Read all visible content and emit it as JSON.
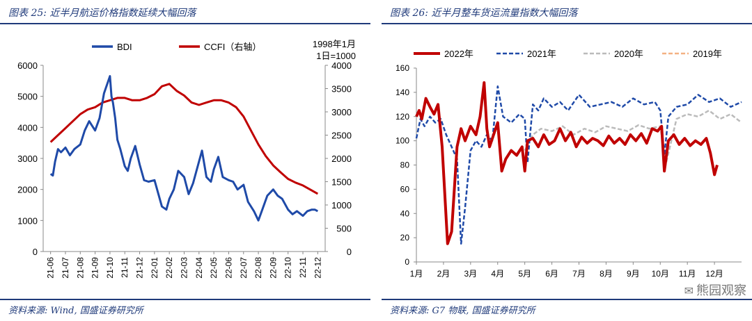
{
  "charts": [
    {
      "title": "图表 25:  近半月航运价格指数延续大幅回落",
      "source": "资料来源: Wind, 国盛证券研究所"
    },
    {
      "title": "图表 26:  近半月整车货运流量指数大幅回落",
      "source": "资料来源: G7 物联, 国盛证券研究所"
    }
  ],
  "watermark": "熊园观察",
  "colors": {
    "blue": "#1f4aa8",
    "red": "#c00000",
    "navy": "#1f3a7a",
    "gray": "#bbbbbb",
    "orange": "#f4b183"
  },
  "chart_data": [
    {
      "type": "line",
      "x_ticks": [
        "21-06",
        "21-07",
        "21-08",
        "21-09",
        "21-10",
        "21-11",
        "21-12",
        "22-01",
        "22-02",
        "22-03",
        "22-04",
        "22-05",
        "22-06",
        "22-07",
        "22-08",
        "22-09",
        "22-10",
        "22-11",
        "22-12"
      ],
      "ylim_left": [
        0,
        6000
      ],
      "yticks_left": [
        "0",
        "1000",
        "2000",
        "3000",
        "4000",
        "5000",
        "6000"
      ],
      "ylim_right": [
        0,
        4000
      ],
      "yticks_right": [
        "0",
        "500",
        "1000",
        "1500",
        "2000",
        "2500",
        "3000",
        "3500",
        "4000"
      ],
      "right_note_1": "1998年1月",
      "right_note_2": "1日=1000",
      "series": [
        {
          "name": "BDI",
          "axis": "left",
          "x": [
            0,
            0.15,
            0.3,
            0.5,
            0.7,
            1.0,
            1.3,
            1.6,
            2.0,
            2.3,
            2.6,
            3.0,
            3.3,
            3.6,
            4.0,
            4.1,
            4.2,
            4.35,
            4.5,
            4.7,
            5.0,
            5.2,
            5.4,
            5.7,
            6.0,
            6.3,
            6.6,
            7.0,
            7.5,
            7.8,
            8.0,
            8.3,
            8.6,
            9.0,
            9.3,
            9.6,
            10.0,
            10.2,
            10.5,
            10.8,
            11.0,
            11.3,
            11.6,
            12.0,
            12.3,
            12.6,
            13.0,
            13.3,
            13.7,
            14.0,
            14.3,
            14.6,
            15.0,
            15.3,
            15.6,
            16.0,
            16.3,
            16.6,
            17.0,
            17.3,
            17.6,
            17.8,
            18.0
          ],
          "y": [
            2500,
            2450,
            2900,
            3300,
            3200,
            3350,
            3100,
            3300,
            3450,
            3900,
            4200,
            3900,
            4300,
            5100,
            5650,
            5000,
            4800,
            4300,
            3600,
            3300,
            2750,
            2600,
            3000,
            3400,
            2800,
            2300,
            2250,
            2300,
            1450,
            1350,
            1700,
            2000,
            2600,
            2400,
            1850,
            2200,
            2900,
            3250,
            2400,
            2250,
            2650,
            3050,
            2400,
            2300,
            2250,
            2000,
            2150,
            1600,
            1300,
            1000,
            1400,
            1800,
            2000,
            1800,
            1700,
            1350,
            1200,
            1300,
            1150,
            1300,
            1350,
            1350,
            1300
          ]
        },
        {
          "name": "CCFI（右轴）",
          "axis": "right",
          "x": [
            0,
            0.5,
            1.0,
            1.5,
            2.0,
            2.5,
            3.0,
            3.5,
            4.0,
            4.5,
            5.0,
            5.5,
            6.0,
            6.5,
            7.0,
            7.5,
            8.0,
            8.5,
            9.0,
            9.5,
            10.0,
            10.5,
            11.0,
            11.5,
            12.0,
            12.5,
            13.0,
            13.5,
            14.0,
            14.5,
            15.0,
            15.5,
            16.0,
            16.5,
            17.0,
            17.5,
            18.0
          ],
          "y": [
            2350,
            2500,
            2650,
            2800,
            2950,
            3050,
            3100,
            3200,
            3250,
            3300,
            3300,
            3250,
            3250,
            3300,
            3380,
            3550,
            3600,
            3450,
            3350,
            3200,
            3150,
            3200,
            3250,
            3250,
            3200,
            3100,
            2900,
            2600,
            2300,
            2050,
            1850,
            1700,
            1560,
            1480,
            1420,
            1330,
            1240
          ]
        }
      ]
    },
    {
      "type": "line",
      "x_ticks": [
        "1月",
        "2月",
        "3月",
        "4月",
        "5月",
        "6月",
        "7月",
        "8月",
        "9月",
        "10月",
        "11月",
        "12月"
      ],
      "ylim": [
        0,
        160
      ],
      "yticks": [
        "0",
        "20",
        "40",
        "60",
        "80",
        "100",
        "120",
        "140",
        "160"
      ],
      "series": [
        {
          "name": "2022年",
          "style": "solid",
          "x": [
            1.0,
            1.1,
            1.2,
            1.35,
            1.5,
            1.65,
            1.8,
            1.95,
            2.05,
            2.15,
            2.3,
            2.5,
            2.65,
            2.8,
            3.0,
            3.2,
            3.35,
            3.5,
            3.6,
            3.7,
            3.85,
            4.0,
            4.15,
            4.3,
            4.5,
            4.7,
            4.9,
            5.0,
            5.1,
            5.3,
            5.5,
            5.7,
            5.9,
            6.1,
            6.3,
            6.5,
            6.7,
            6.9,
            7.1,
            7.3,
            7.5,
            7.7,
            7.9,
            8.1,
            8.3,
            8.5,
            8.7,
            8.9,
            9.1,
            9.3,
            9.5,
            9.7,
            9.9,
            10.05,
            10.15,
            10.3,
            10.5,
            10.7,
            10.9,
            11.1,
            11.3,
            11.5,
            11.7,
            11.85,
            12.0,
            12.1
          ],
          "y": [
            120,
            125,
            118,
            135,
            128,
            122,
            130,
            95,
            55,
            15,
            25,
            95,
            110,
            100,
            112,
            105,
            120,
            148,
            110,
            95,
            105,
            115,
            75,
            85,
            92,
            88,
            95,
            75,
            100,
            102,
            95,
            105,
            97,
            100,
            110,
            100,
            107,
            95,
            103,
            98,
            102,
            100,
            96,
            104,
            98,
            102,
            97,
            105,
            100,
            106,
            98,
            110,
            108,
            112,
            75,
            100,
            105,
            97,
            102,
            96,
            100,
            97,
            102,
            90,
            72,
            80
          ]
        },
        {
          "name": "2021年",
          "style": "dashed",
          "x": [
            1.0,
            1.15,
            1.3,
            1.5,
            1.7,
            1.9,
            2.1,
            2.3,
            2.5,
            2.65,
            2.8,
            3.0,
            3.2,
            3.4,
            3.6,
            3.8,
            4.0,
            4.2,
            4.5,
            4.8,
            5.0,
            5.1,
            5.3,
            5.5,
            5.7,
            6.0,
            6.3,
            6.6,
            7.0,
            7.4,
            7.8,
            8.2,
            8.6,
            9.0,
            9.4,
            9.8,
            10.0,
            10.15,
            10.3,
            10.6,
            11.0,
            11.4,
            11.8,
            12.2,
            12.6,
            13.0
          ],
          "y": [
            102,
            118,
            112,
            120,
            115,
            118,
            105,
            95,
            85,
            15,
            45,
            92,
            100,
            95,
            105,
            100,
            145,
            120,
            115,
            122,
            118,
            82,
            130,
            125,
            135,
            128,
            132,
            125,
            138,
            128,
            130,
            132,
            128,
            135,
            130,
            132,
            125,
            88,
            120,
            128,
            130,
            138,
            132,
            135,
            128,
            132
          ]
        },
        {
          "name": "2020年",
          "style": "dashed",
          "x": [
            5.0,
            5.3,
            5.6,
            6.0,
            6.4,
            6.8,
            7.2,
            7.6,
            8.0,
            8.4,
            8.8,
            9.2,
            9.6,
            10.0,
            10.2,
            10.6,
            11.0,
            11.4,
            11.8,
            12.2,
            12.6,
            13.0
          ],
          "y": [
            92,
            105,
            110,
            108,
            112,
            105,
            110,
            107,
            112,
            110,
            108,
            113,
            110,
            112,
            80,
            118,
            122,
            120,
            125,
            118,
            122,
            115
          ]
        },
        {
          "name": "2019年",
          "style": "dashed",
          "x": [],
          "y": []
        }
      ]
    }
  ]
}
